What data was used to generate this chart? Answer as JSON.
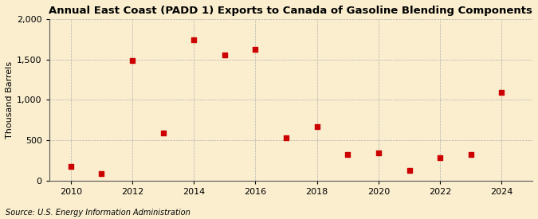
{
  "title": "Annual East Coast (PADD 1) Exports to Canada of Gasoline Blending Components",
  "ylabel": "Thousand Barrels",
  "source": "Source: U.S. Energy Information Administration",
  "years": [
    2010,
    2011,
    2012,
    2013,
    2014,
    2015,
    2016,
    2017,
    2018,
    2019,
    2020,
    2021,
    2022,
    2023,
    2024
  ],
  "values": [
    175,
    90,
    1490,
    590,
    1740,
    1560,
    1620,
    530,
    670,
    330,
    340,
    130,
    290,
    330,
    1090
  ],
  "marker_color": "#cc0000",
  "marker": "s",
  "marker_size": 4.5,
  "ylim": [
    0,
    2000
  ],
  "yticks": [
    0,
    500,
    1000,
    1500,
    2000
  ],
  "xticks": [
    2010,
    2012,
    2014,
    2016,
    2018,
    2020,
    2022,
    2024
  ],
  "background_color": "#faeece",
  "grid_color": "#aaaaaa",
  "title_fontsize": 9.5,
  "label_fontsize": 8,
  "source_fontsize": 7,
  "tick_fontsize": 8
}
